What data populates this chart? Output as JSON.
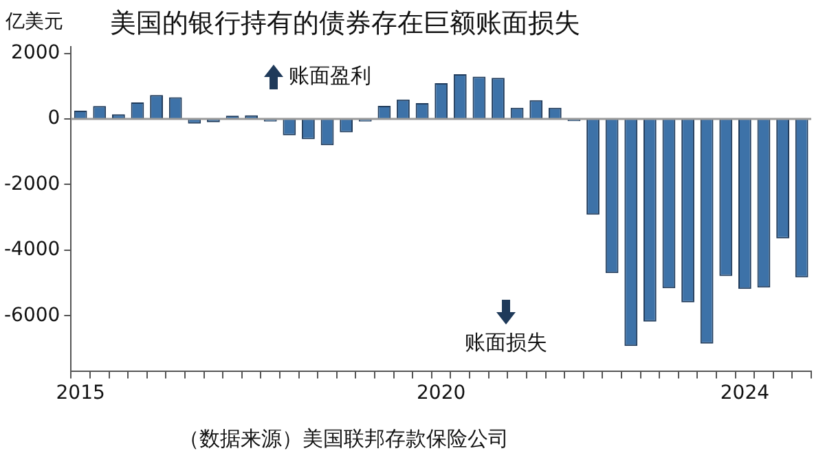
{
  "chart_data": {
    "type": "bar",
    "title": "美国的银行持有的债券存在巨额账面损失",
    "ylabel": "亿美元",
    "annotations": [
      "账面盈利",
      "账面损失",
      "（数据来源）美国联邦存款保险公司"
    ],
    "categories": [
      "2015",
      null,
      null,
      null,
      null,
      null,
      null,
      null,
      null,
      null,
      null,
      null,
      null,
      null,
      null,
      null,
      null,
      null,
      null,
      "2020",
      null,
      null,
      null,
      null,
      null,
      null,
      null,
      null,
      null,
      null,
      null,
      null,
      null,
      null,
      null,
      "2024",
      null,
      null,
      null
    ],
    "values": [
      250,
      390,
      140,
      500,
      730,
      660,
      -140,
      -100,
      100,
      110,
      -80,
      -500,
      -620,
      -800,
      -410,
      -80,
      400,
      590,
      480,
      1090,
      1360,
      1290,
      1250,
      340,
      570,
      340,
      -70,
      -2920,
      -4700,
      -6920,
      -6180,
      -5160,
      -5590,
      -6850,
      -4790,
      -5180,
      -5140,
      -3640,
      -4830
    ],
    "color": "#3d72a8",
    "ylim": [
      -7700,
      2200
    ],
    "yticks": [
      2000,
      0,
      -2000,
      -4000,
      -6000
    ],
    "ref_lines": [
      {
        "axis": "y",
        "value": 0,
        "color": "#999999"
      }
    ],
    "grid": false,
    "legend": false
  }
}
